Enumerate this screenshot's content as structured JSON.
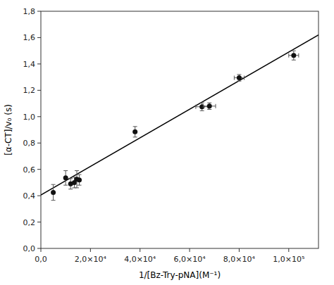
{
  "chart_data": {
    "type": "scatter",
    "xlabel": "1/[Bz-Try-pNA](M⁻¹)",
    "ylabel": "[α-CT]/v₀ (s)",
    "xlim": [
      0,
      112000
    ],
    "ylim": [
      0.0,
      1.8
    ],
    "xticks": [
      {
        "value": 0,
        "label": "0,0"
      },
      {
        "value": 20000,
        "label": "2,0×10⁴"
      },
      {
        "value": 40000,
        "label": "4,0×10⁴"
      },
      {
        "value": 60000,
        "label": "6,0×10⁴"
      },
      {
        "value": 80000,
        "label": "8,0×10⁴"
      },
      {
        "value": 100000,
        "label": "1,0×10⁵"
      }
    ],
    "yticks": [
      {
        "value": 0.0,
        "label": "0,0"
      },
      {
        "value": 0.2,
        "label": "0,2"
      },
      {
        "value": 0.4,
        "label": "0,4"
      },
      {
        "value": 0.6,
        "label": "0,6"
      },
      {
        "value": 0.8,
        "label": "0,8"
      },
      {
        "value": 1.0,
        "label": "1,0"
      },
      {
        "value": 1.2,
        "label": "1,2"
      },
      {
        "value": 1.4,
        "label": "1,4"
      },
      {
        "value": 1.6,
        "label": "1,6"
      },
      {
        "value": 1.8,
        "label": "1,8"
      }
    ],
    "series": [
      {
        "type": "line",
        "color": "#000000",
        "x": [
          0,
          112000
        ],
        "values": [
          0.405,
          1.62
        ]
      },
      {
        "type": "scatter",
        "color": "#111111",
        "marker": "circle",
        "x": [
          5000,
          10000,
          12000,
          13500,
          14500,
          15500,
          38000,
          65000,
          68000,
          80000,
          102000
        ],
        "values": [
          0.425,
          0.535,
          0.49,
          0.5,
          0.525,
          0.52,
          0.885,
          1.075,
          1.08,
          1.295,
          1.465
        ],
        "y_err": [
          0.06,
          0.055,
          0.04,
          0.04,
          0.065,
          0.04,
          0.04,
          0.03,
          0.025,
          0.025,
          0.035
        ],
        "x_err_minus": [
          0,
          0,
          0,
          0,
          0,
          0,
          0,
          2500,
          2500,
          2000,
          2000
        ],
        "x_err_plus": [
          0,
          0,
          0,
          0,
          0,
          0,
          0,
          2500,
          2500,
          2000,
          2000
        ]
      }
    ]
  }
}
